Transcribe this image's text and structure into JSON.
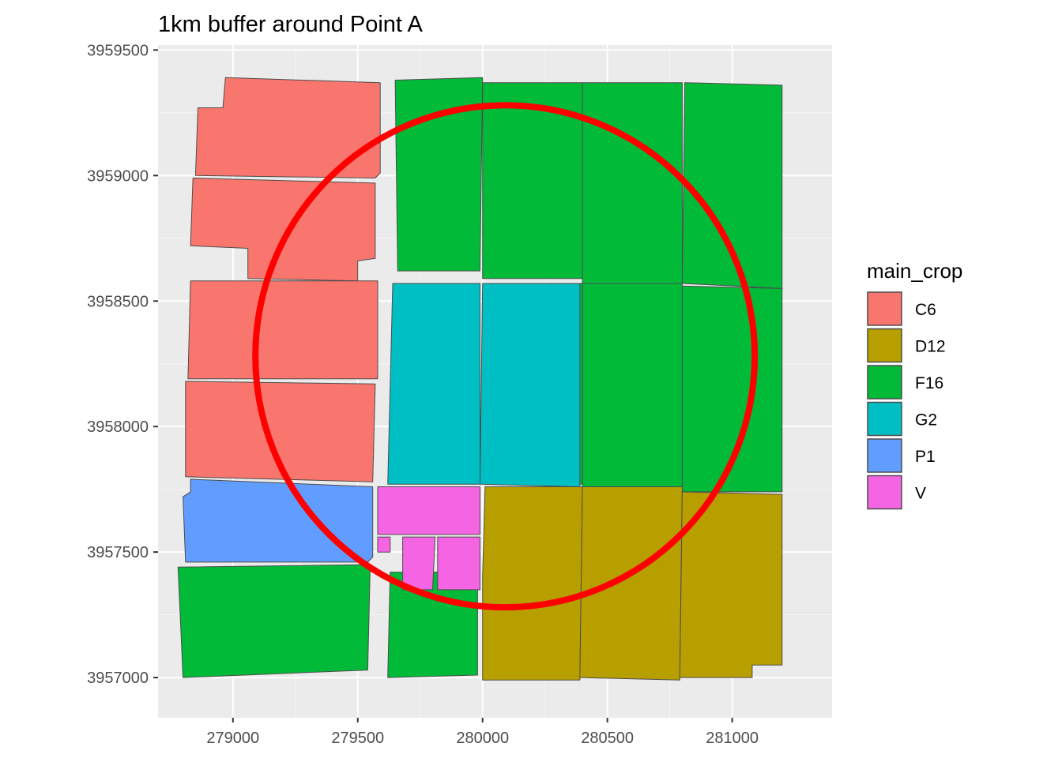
{
  "chart_data": {
    "type": "map",
    "title": "1km buffer around Point A",
    "xlabel": "",
    "ylabel": "",
    "xlim": [
      278700,
      281400
    ],
    "ylim": [
      3956840,
      3959520
    ],
    "x_ticks": [
      279000,
      279500,
      280000,
      280500,
      281000
    ],
    "x_tick_labels": [
      "279000",
      "279500",
      "280000",
      "280500",
      "281000"
    ],
    "y_ticks": [
      3957000,
      3957500,
      3958000,
      3958500,
      3959000,
      3959500
    ],
    "y_tick_labels": [
      "3957000",
      "3957500",
      "3958000",
      "3958500",
      "3959000",
      "3959500"
    ],
    "grid": true,
    "legend": {
      "title": "main_crop",
      "position": "right",
      "entries": [
        {
          "label": "C6",
          "color": "#F8766D"
        },
        {
          "label": "D12",
          "color": "#B79F00"
        },
        {
          "label": "F16",
          "color": "#00BA38"
        },
        {
          "label": "G2",
          "color": "#00BFC4"
        },
        {
          "label": "P1",
          "color": "#619CFF"
        },
        {
          "label": "V",
          "color": "#F564E3"
        }
      ]
    },
    "buffer": {
      "center_x": 280090,
      "center_y": 3958280,
      "radius_m": 1000,
      "color": "#FF0000"
    },
    "fields": [
      {
        "crop": "C6",
        "points": [
          [
            279590,
            3959370
          ],
          [
            279590,
            3959010
          ],
          [
            279570,
            3958990
          ],
          [
            278850,
            3959000
          ],
          [
            278860,
            3959270
          ],
          [
            278960,
            3959270
          ],
          [
            278970,
            3959390
          ]
        ]
      },
      {
        "crop": "C6",
        "points": [
          [
            279570,
            3958970
          ],
          [
            279570,
            3958670
          ],
          [
            279500,
            3958660
          ],
          [
            279500,
            3958580
          ],
          [
            279060,
            3958590
          ],
          [
            279060,
            3958710
          ],
          [
            278830,
            3958720
          ],
          [
            278840,
            3958990
          ]
        ]
      },
      {
        "crop": "C6",
        "points": [
          [
            279580,
            3958580
          ],
          [
            279580,
            3958190
          ],
          [
            278820,
            3958190
          ],
          [
            278830,
            3958580
          ]
        ]
      },
      {
        "crop": "C6",
        "points": [
          [
            279570,
            3958170
          ],
          [
            279560,
            3957780
          ],
          [
            278810,
            3957800
          ],
          [
            278810,
            3958180
          ]
        ]
      },
      {
        "crop": "P1",
        "points": [
          [
            279560,
            3957760
          ],
          [
            279560,
            3957480
          ],
          [
            279540,
            3957460
          ],
          [
            278810,
            3957460
          ],
          [
            278800,
            3957720
          ],
          [
            278830,
            3957740
          ],
          [
            278830,
            3957790
          ]
        ]
      },
      {
        "crop": "F16",
        "points": [
          [
            279550,
            3957450
          ],
          [
            279540,
            3957030
          ],
          [
            278800,
            3957000
          ],
          [
            278780,
            3957440
          ]
        ]
      },
      {
        "crop": "F16",
        "points": [
          [
            280000,
            3959390
          ],
          [
            279990,
            3958620
          ],
          [
            279660,
            3958620
          ],
          [
            279650,
            3959380
          ]
        ]
      },
      {
        "crop": "F16",
        "points": [
          [
            280400,
            3959370
          ],
          [
            280400,
            3958590
          ],
          [
            280000,
            3958590
          ],
          [
            280000,
            3959370
          ],
          [
            280300,
            3959370
          ]
        ]
      },
      {
        "crop": "F16",
        "points": [
          [
            280800,
            3959370
          ],
          [
            280800,
            3958570
          ],
          [
            280400,
            3958570
          ],
          [
            280400,
            3959370
          ]
        ]
      },
      {
        "crop": "F16",
        "points": [
          [
            281200,
            3959360
          ],
          [
            281200,
            3958550
          ],
          [
            280800,
            3958570
          ],
          [
            280810,
            3959370
          ]
        ]
      },
      {
        "crop": "F16",
        "points": [
          [
            280400,
            3958570
          ],
          [
            280400,
            3957770
          ],
          [
            280040,
            3957770
          ],
          [
            280040,
            3958570
          ]
        ]
      },
      {
        "crop": "F16",
        "points": [
          [
            280800,
            3958570
          ],
          [
            280800,
            3957760
          ],
          [
            280400,
            3957760
          ],
          [
            280400,
            3958570
          ]
        ]
      },
      {
        "crop": "F16",
        "points": [
          [
            281200,
            3958550
          ],
          [
            281200,
            3957740
          ],
          [
            280800,
            3957740
          ],
          [
            280800,
            3958560
          ]
        ]
      },
      {
        "crop": "F16",
        "points": [
          [
            279980,
            3957420
          ],
          [
            279980,
            3957010
          ],
          [
            279620,
            3957000
          ],
          [
            279630,
            3957420
          ]
        ]
      },
      {
        "crop": "G2",
        "points": [
          [
            279990,
            3958570
          ],
          [
            279990,
            3957770
          ],
          [
            279620,
            3957770
          ],
          [
            279640,
            3958570
          ]
        ]
      },
      {
        "crop": "G2",
        "points": [
          [
            280390,
            3958570
          ],
          [
            280390,
            3957760
          ],
          [
            279990,
            3957770
          ],
          [
            280000,
            3958570
          ]
        ]
      },
      {
        "crop": "V",
        "points": [
          [
            279990,
            3957760
          ],
          [
            279990,
            3957570
          ],
          [
            279580,
            3957570
          ],
          [
            279580,
            3957760
          ]
        ]
      },
      {
        "crop": "V",
        "points": [
          [
            279990,
            3957560
          ],
          [
            279990,
            3957350
          ],
          [
            279820,
            3957350
          ],
          [
            279820,
            3957560
          ]
        ]
      },
      {
        "crop": "V",
        "points": [
          [
            279810,
            3957560
          ],
          [
            279800,
            3957350
          ],
          [
            279680,
            3957350
          ],
          [
            279680,
            3957560
          ]
        ]
      },
      {
        "crop": "V",
        "points": [
          [
            279630,
            3957560
          ],
          [
            279630,
            3957500
          ],
          [
            279580,
            3957500
          ],
          [
            279580,
            3957560
          ]
        ]
      },
      {
        "crop": "D12",
        "points": [
          [
            280400,
            3957760
          ],
          [
            280390,
            3956990
          ],
          [
            280000,
            3956990
          ],
          [
            280000,
            3957400
          ],
          [
            280010,
            3957760
          ]
        ]
      },
      {
        "crop": "D12",
        "points": [
          [
            280800,
            3957760
          ],
          [
            280790,
            3956990
          ],
          [
            280390,
            3957000
          ],
          [
            280400,
            3957760
          ]
        ]
      },
      {
        "crop": "D12",
        "points": [
          [
            281200,
            3957730
          ],
          [
            281200,
            3957050
          ],
          [
            281080,
            3957050
          ],
          [
            281080,
            3957000
          ],
          [
            280790,
            3957000
          ],
          [
            280800,
            3957740
          ]
        ]
      }
    ]
  }
}
